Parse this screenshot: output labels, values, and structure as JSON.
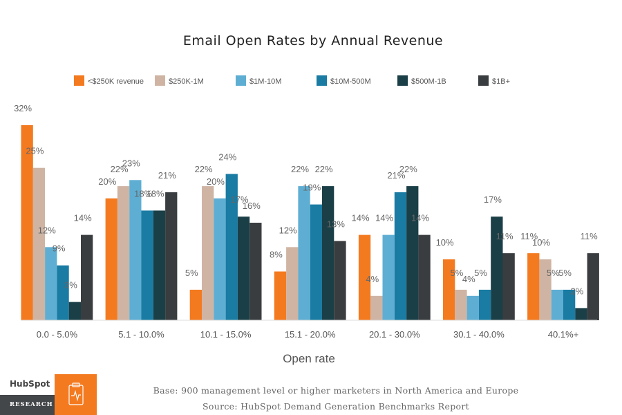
{
  "chart_data": {
    "type": "bar",
    "title": "Email Open Rates by Annual Revenue",
    "xlabel": "Open rate",
    "ylabel": "",
    "ylim": [
      0,
      32
    ],
    "grid": false,
    "legend_position": "top",
    "categories": [
      "0.0 - 5.0%",
      "5.1 - 10.0%",
      "10.1 - 15.0%",
      "15.1 - 20.0%",
      "20.1 - 30.0%",
      "30.1 - 40.0%",
      "40.1%+"
    ],
    "series": [
      {
        "name": "<$250K revenue",
        "color": "#f47a20",
        "values": [
          32,
          20,
          5,
          8,
          14,
          10,
          11
        ]
      },
      {
        "name": "$250K-1M",
        "color": "#cfb4a3",
        "values": [
          25,
          22,
          22,
          12,
          4,
          5,
          10
        ]
      },
      {
        "name": "$1M-10M",
        "color": "#5eaed3",
        "values": [
          12,
          23,
          20,
          22,
          14,
          4,
          5
        ]
      },
      {
        "name": "$10M-500M",
        "color": "#1a7ba3",
        "values": [
          9,
          18,
          24,
          19,
          21,
          5,
          5
        ]
      },
      {
        "name": "$500M-1B",
        "color": "#1b3f47",
        "values": [
          3,
          18,
          17,
          22,
          22,
          17,
          2
        ]
      },
      {
        "name": "$1B+",
        "color": "#3a3d40",
        "values": [
          14,
          21,
          16,
          13,
          14,
          11,
          11
        ]
      }
    ],
    "value_suffix": "%"
  },
  "footer": {
    "base_note": "Base: 900 management level or higher marketers in North America and Europe",
    "source_note": "Source: HubSpot Demand Generation Benchmarks Report"
  },
  "brand": {
    "logo_text": "HubSpot",
    "tag": "RESEARCH",
    "accent_color": "#f47a20",
    "dark_color": "#444749"
  }
}
